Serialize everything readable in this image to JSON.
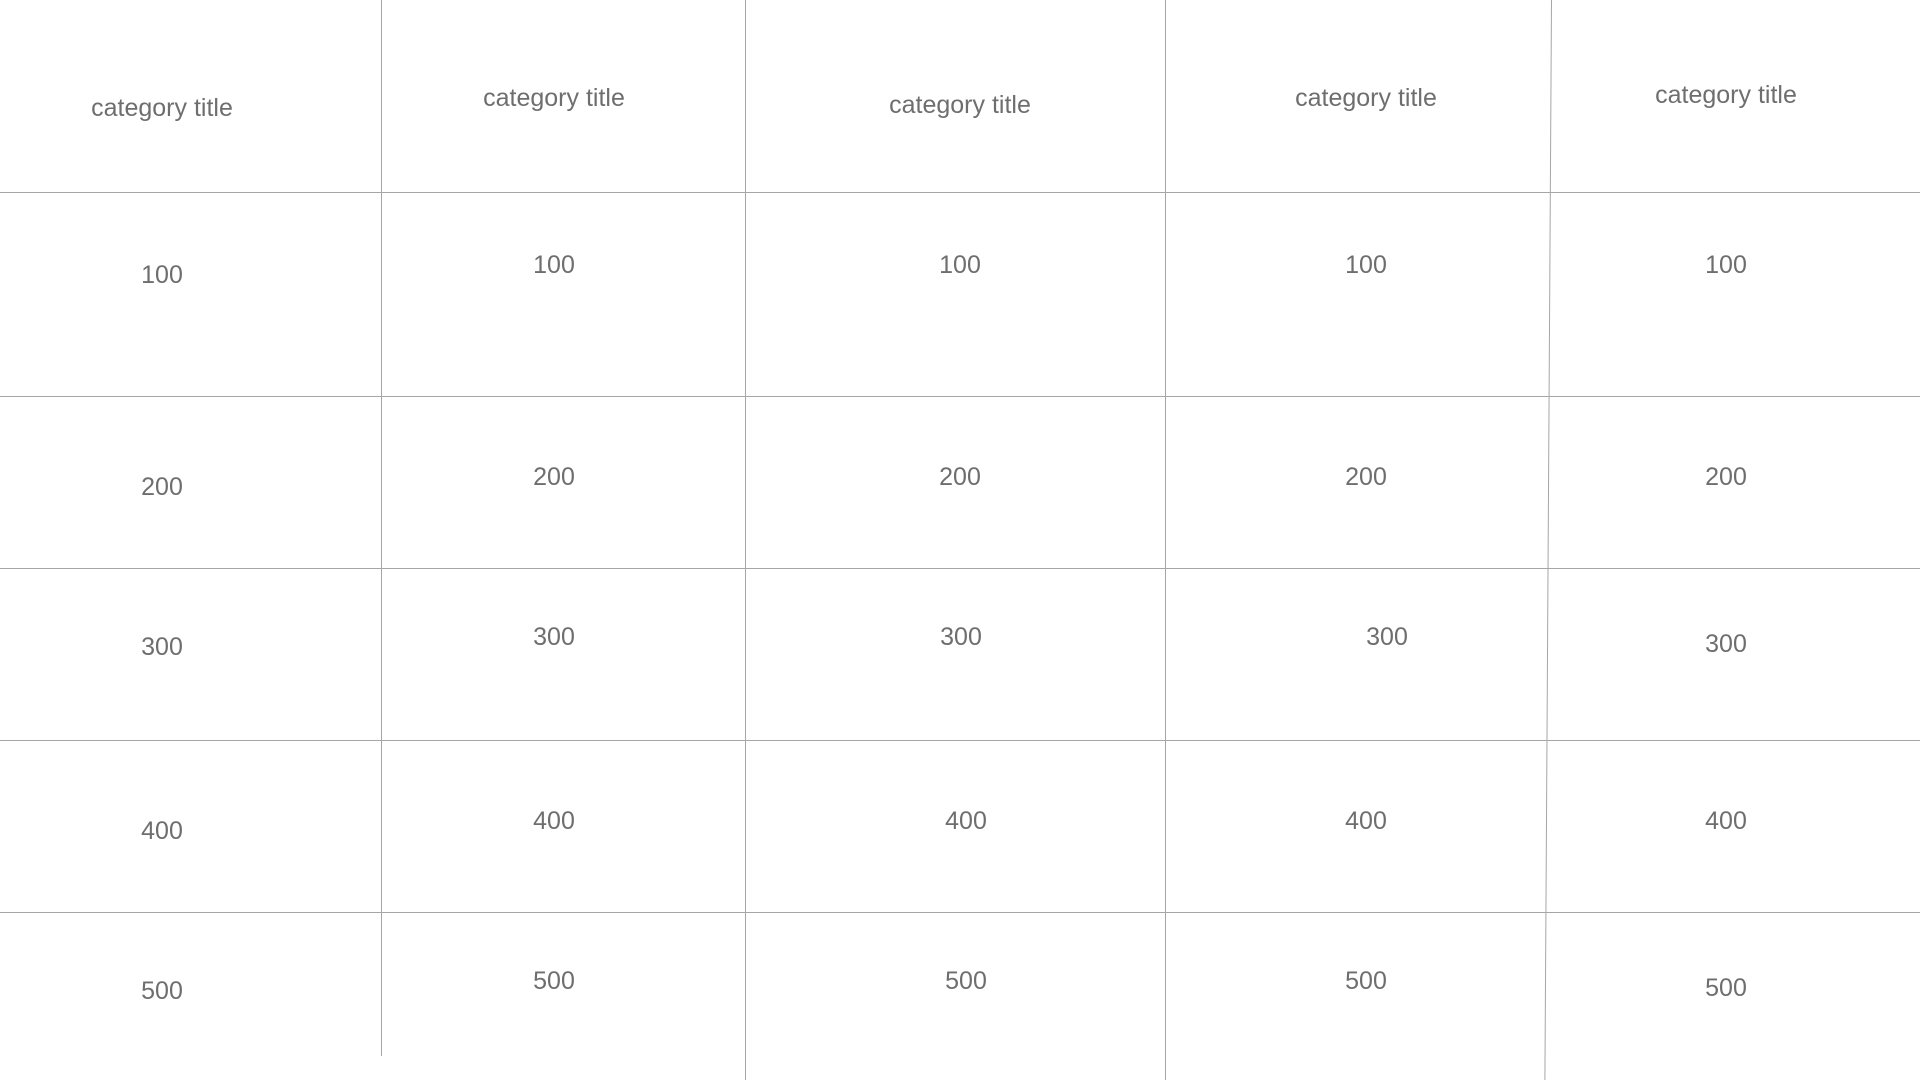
{
  "board": {
    "categories": [
      "category title",
      "category title",
      "category title",
      "category title",
      "category title"
    ],
    "point_values": [
      "100",
      "200",
      "300",
      "400",
      "500"
    ],
    "columns": [
      [
        "100",
        "200",
        "300",
        "400",
        "500"
      ],
      [
        "100",
        "200",
        "300",
        "400",
        "500"
      ],
      [
        "100",
        "200",
        "300",
        "400",
        "500"
      ],
      [
        "100",
        "200",
        "300",
        "400",
        "500"
      ],
      [
        "100",
        "200",
        "300",
        "400",
        "500"
      ]
    ]
  },
  "colors": {
    "line": "#a6a6a6",
    "text": "#6e6e6e",
    "background": "#ffffff"
  }
}
